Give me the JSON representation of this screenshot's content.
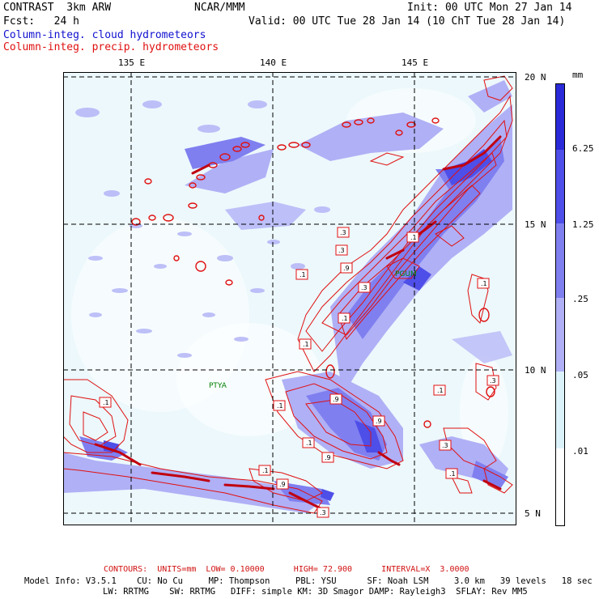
{
  "header": {
    "line1_left": "CONTRAST  3km ARW",
    "line1_center": "NCAR/MMM",
    "line1_right": "Init: 00 UTC Mon 27 Jan 14",
    "line2_left": "Fcst:   24 h",
    "line2_right": "Valid: 00 UTC Tue 28 Jan 14 (10 ChT Tue 28 Jan 14)",
    "field1": "Column-integ. cloud hydrometeors",
    "field2": "Column-integ. precip. hydrometeors"
  },
  "axes": {
    "lon_labels": [
      "135 E",
      "140 E",
      "145 E"
    ],
    "lat_labels": [
      "20 N",
      "15 N",
      "10 N",
      "5 N"
    ]
  },
  "stations": [
    "PGUM",
    "PTYA"
  ],
  "contour_labels": [
    ".1",
    ".3",
    ".9"
  ],
  "legend": {
    "units": "mm",
    "levels": [
      "6.25",
      "1.25",
      ".25",
      ".05",
      ".01"
    ],
    "colors": [
      "#2a2ad8",
      "#4e4ee8",
      "#7f7ff0",
      "#b0b0f6",
      "#dcf2fa",
      "#ffffff"
    ]
  },
  "footer": {
    "contours": "CONTOURS:  UNITS=mm  LOW= 0.10000      HIGH= 72.900      INTERVAL=X  3.0000",
    "model_line1": "Model Info: V3.5.1    CU: No Cu     MP: Thompson     PBL: YSU      SF: Noah LSM     3.0 km   39 levels   18 sec",
    "model_line2": "LW: RRTMG    SW: RRTMG   DIFF: simple KM: 3D Smagor DAMP: Rayleigh3  SFLAY: Rev MM5"
  },
  "colors": {
    "cloud_light": "#dcf2fa",
    "cloud_mid": "#b0b0f6",
    "cloud_dark": "#7f7ff0",
    "cloud_strong": "#4e4ee8",
    "precip_contour": "#e01010"
  }
}
